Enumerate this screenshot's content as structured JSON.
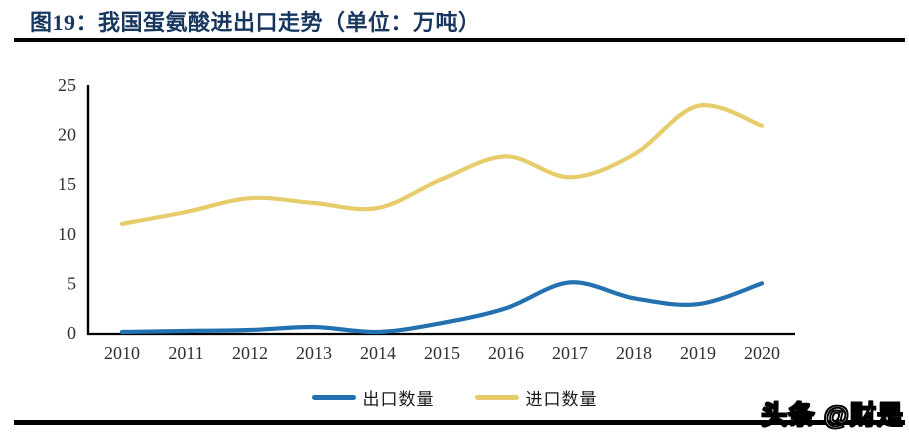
{
  "header": {
    "title": "图19：我国蛋氨酸进出口走势（单位：万吨）"
  },
  "watermark": "头条 @财是",
  "colors": {
    "title": "#17375e",
    "axis": "#000000",
    "tick_label": "#303030",
    "export_line": "#2371b0",
    "import_line": "#e6cc6a",
    "rule": "#000000"
  },
  "chart_data": {
    "type": "line",
    "title": "图19：我国蛋氨酸进出口走势（单位：万吨）",
    "xlabel": "",
    "ylabel": "",
    "unit": "万吨",
    "categories": [
      "2010",
      "2011",
      "2012",
      "2013",
      "2014",
      "2015",
      "2016",
      "2017",
      "2018",
      "2019",
      "2020"
    ],
    "series": [
      {
        "name": "出口数量",
        "color": "#2371b0",
        "values": [
          0.1,
          0.2,
          0.3,
          0.6,
          0.1,
          1.0,
          2.5,
          5.1,
          3.5,
          2.9,
          5.0
        ]
      },
      {
        "name": "进口数量",
        "color": "#e6cc6a",
        "values": [
          11.0,
          12.2,
          13.6,
          13.1,
          12.6,
          15.5,
          17.8,
          15.7,
          18.0,
          22.9,
          20.9
        ]
      }
    ],
    "ylim": [
      0,
      25
    ],
    "yticks": [
      0,
      5,
      10,
      15,
      20,
      25
    ],
    "grid": false,
    "legend_position": "bottom",
    "smooth": true
  }
}
